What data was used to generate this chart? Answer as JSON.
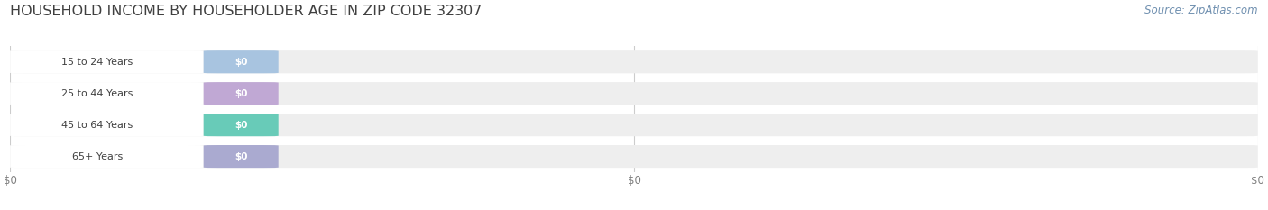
{
  "title": "HOUSEHOLD INCOME BY HOUSEHOLDER AGE IN ZIP CODE 32307",
  "source_text": "Source: ZipAtlas.com",
  "categories": [
    "15 to 24 Years",
    "25 to 44 Years",
    "45 to 64 Years",
    "65+ Years"
  ],
  "values": [
    0,
    0,
    0,
    0
  ],
  "bar_colors": [
    "#a8c4e0",
    "#c0a8d4",
    "#68cbb8",
    "#aaaad0"
  ],
  "bar_bg_color": "#eeeeee",
  "background_color": "#ffffff",
  "title_fontsize": 11.5,
  "title_color": "#404040",
  "source_fontsize": 8.5,
  "source_color": "#7090b0",
  "tick_color": "#808080",
  "tick_fontsize": 8.5,
  "label_fontsize": 8.0,
  "value_fontsize": 7.5
}
